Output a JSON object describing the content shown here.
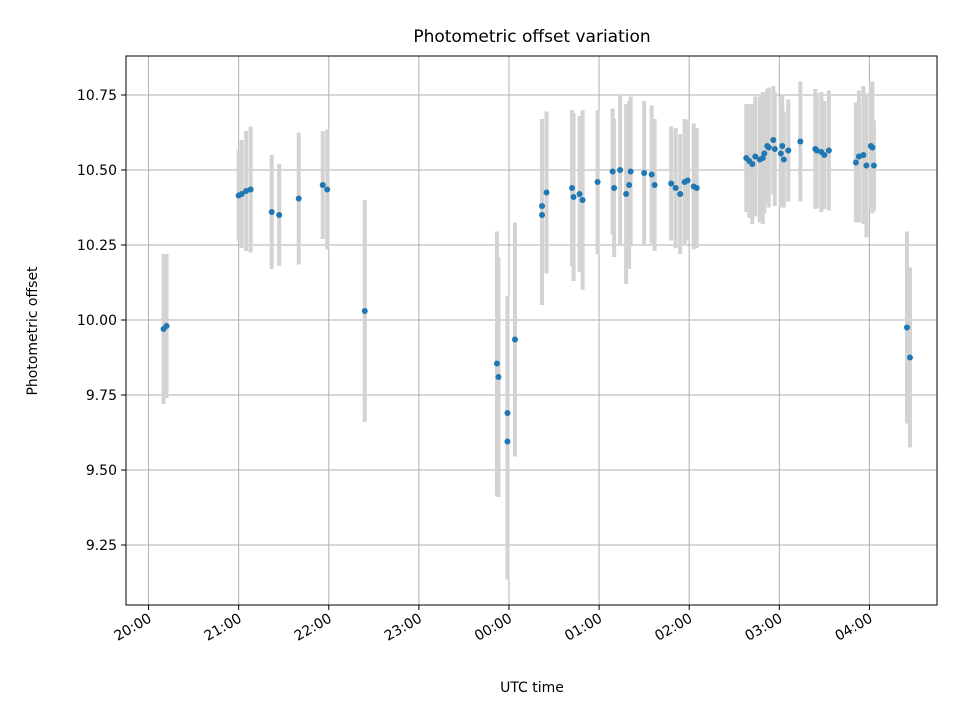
{
  "chart_data": {
    "type": "scatter",
    "title": "Photometric offset variation",
    "xlabel": "UTC time",
    "ylabel": "Photometric offset",
    "x_unit": "time (HH:MM, UTC)",
    "xlim": [
      "19:45",
      "04:45"
    ],
    "ylim": [
      9.05,
      10.88
    ],
    "x_ticks": [
      "20:00",
      "21:00",
      "22:00",
      "23:00",
      "00:00",
      "01:00",
      "02:00",
      "03:00",
      "04:00"
    ],
    "y_ticks": [
      "9.25",
      "9.50",
      "9.75",
      "10.00",
      "10.25",
      "10.50",
      "10.75"
    ],
    "grid": true,
    "colors": {
      "points": "#1f77b4",
      "errorbars": "#d3d3d3"
    },
    "series": [
      {
        "x": [
          "20:10",
          "20:12",
          "21:00",
          "21:02",
          "21:05",
          "21:08",
          "21:22",
          "21:27",
          "21:40",
          "21:56",
          "21:59",
          "22:24",
          "23:52",
          "23:53",
          "23:59",
          "23:59",
          "00:04",
          "00:22",
          "00:22",
          "00:25",
          "00:42",
          "00:43",
          "00:47",
          "00:49",
          "00:59",
          "01:09",
          "01:10",
          "01:14",
          "01:18",
          "01:20",
          "01:21",
          "01:30",
          "01:35",
          "01:37",
          "01:48",
          "01:51",
          "01:54",
          "01:57",
          "01:59",
          "02:03",
          "02:05",
          "02:38",
          "02:40",
          "02:42",
          "02:44",
          "02:47",
          "02:49",
          "02:50",
          "02:52",
          "02:53",
          "02:56",
          "02:57",
          "03:01",
          "03:02",
          "03:03",
          "03:06",
          "03:14",
          "03:24",
          "03:25",
          "03:28",
          "03:30",
          "03:33",
          "03:51",
          "03:53",
          "03:56",
          "03:58",
          "04:01",
          "04:02",
          "04:03",
          "04:25",
          "04:27"
        ],
        "y": [
          9.97,
          9.98,
          10.415,
          10.42,
          10.43,
          10.435,
          10.36,
          10.35,
          10.405,
          10.45,
          10.435,
          10.03,
          9.855,
          9.81,
          9.595,
          9.69,
          9.935,
          10.35,
          10.38,
          10.425,
          10.44,
          10.41,
          10.42,
          10.4,
          10.46,
          10.495,
          10.44,
          10.5,
          10.42,
          10.45,
          10.495,
          10.49,
          10.485,
          10.45,
          10.455,
          10.44,
          10.42,
          10.46,
          10.465,
          10.445,
          10.44,
          10.54,
          10.53,
          10.52,
          10.545,
          10.535,
          10.54,
          10.555,
          10.58,
          10.575,
          10.6,
          10.57,
          10.555,
          10.58,
          10.535,
          10.565,
          10.595,
          10.57,
          10.565,
          10.56,
          10.55,
          10.565,
          10.525,
          10.545,
          10.55,
          10.515,
          10.58,
          10.575,
          10.515,
          9.975,
          9.875
        ],
        "err": [
          0.25,
          0.24,
          0.15,
          0.18,
          0.2,
          0.21,
          0.19,
          0.17,
          0.22,
          0.18,
          0.2,
          0.37,
          0.44,
          0.4,
          0.46,
          0.39,
          0.39,
          0.3,
          0.29,
          0.27,
          0.26,
          0.28,
          0.26,
          0.3,
          0.24,
          0.21,
          0.23,
          0.25,
          0.3,
          0.28,
          0.25,
          0.24,
          0.23,
          0.22,
          0.19,
          0.2,
          0.2,
          0.21,
          0.2,
          0.21,
          0.2,
          0.18,
          0.19,
          0.2,
          0.2,
          0.21,
          0.22,
          0.2,
          0.19,
          0.2,
          0.18,
          0.19,
          0.18,
          0.17,
          0.16,
          0.17,
          0.2,
          0.2,
          0.19,
          0.2,
          0.18,
          0.2,
          0.2,
          0.22,
          0.23,
          0.24,
          0.21,
          0.22,
          0.15,
          0.32,
          0.3
        ]
      }
    ]
  }
}
